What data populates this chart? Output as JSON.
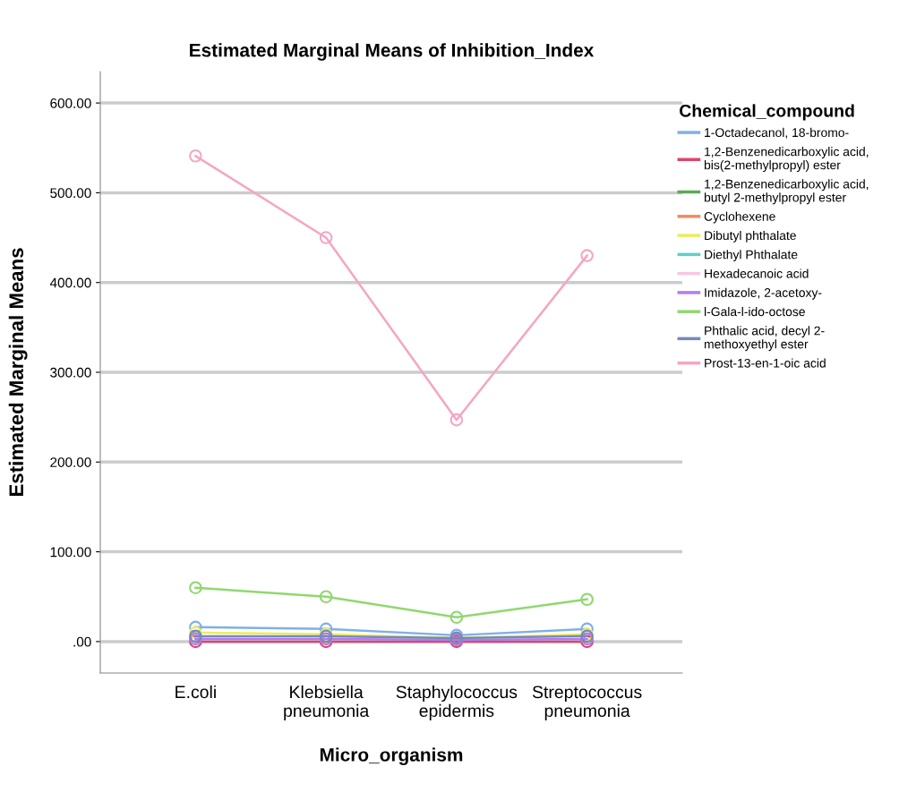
{
  "chart_data": {
    "type": "line",
    "title": "Estimated Marginal Means of Inhibition_Index",
    "xlabel": "Micro_organism",
    "ylabel": "Estimated Marginal Means",
    "legend_title": "Chemical_compound",
    "categories": [
      "E.coli",
      "Klebsiella\npneumonia",
      "Staphylococcus\nepidermis",
      "Streptococcus\npneumonia"
    ],
    "series": [
      {
        "name": "1-Octadecanol, 18-bromo-",
        "color": "#7eb0e8",
        "values": [
          16,
          14,
          7,
          14
        ]
      },
      {
        "name": "1,2-Benzenedicarboxylic acid,\nbis(2-methylpropyl) ester",
        "color": "#e0446b",
        "values": [
          0,
          0,
          0,
          0
        ]
      },
      {
        "name": "1,2-Benzenedicarboxylic acid,\nbutyl 2-methylpropyl ester",
        "color": "#5aaa55",
        "values": [
          null,
          null,
          null,
          null
        ]
      },
      {
        "name": "Cyclohexene",
        "color": "#f08a5d",
        "values": [
          null,
          null,
          null,
          null
        ]
      },
      {
        "name": "Dibutyl phthalate",
        "color": "#ecec5a",
        "values": [
          10,
          8,
          4,
          8
        ]
      },
      {
        "name": "Diethyl Phthalate",
        "color": "#5ed0c8",
        "values": [
          null,
          null,
          null,
          null
        ]
      },
      {
        "name": "Hexadecanoic acid",
        "color": "#f7c8e0",
        "values": [
          null,
          null,
          null,
          null
        ]
      },
      {
        "name": "Imidazole, 2-acetoxy-",
        "color": "#b07cf0",
        "values": [
          3,
          3,
          2,
          3
        ]
      },
      {
        "name": "l-Gala-l-ido-octose",
        "color": "#90d870",
        "values": [
          60,
          50,
          27,
          47
        ]
      },
      {
        "name": "Phthalic acid, decyl 2-\nmethoxyethyl ester",
        "color": "#7788bb",
        "values": [
          6,
          6,
          4,
          6
        ]
      },
      {
        "name": "Prost-13-en-1-oic acid",
        "color": "#f4a6c4",
        "values": [
          541,
          450,
          247,
          430
        ]
      }
    ],
    "ylim": [
      -35,
      635
    ],
    "yticks": [
      {
        "value": 0,
        "label": ".00"
      },
      {
        "value": 100,
        "label": "100.00"
      },
      {
        "value": 200,
        "label": "200.00"
      },
      {
        "value": 300,
        "label": "300.00"
      },
      {
        "value": 400,
        "label": "400.00"
      },
      {
        "value": 500,
        "label": "500.00"
      },
      {
        "value": 600,
        "label": "600.00"
      }
    ],
    "grid": "y",
    "legend": "right",
    "marker": "circle",
    "line_style": "solid"
  }
}
